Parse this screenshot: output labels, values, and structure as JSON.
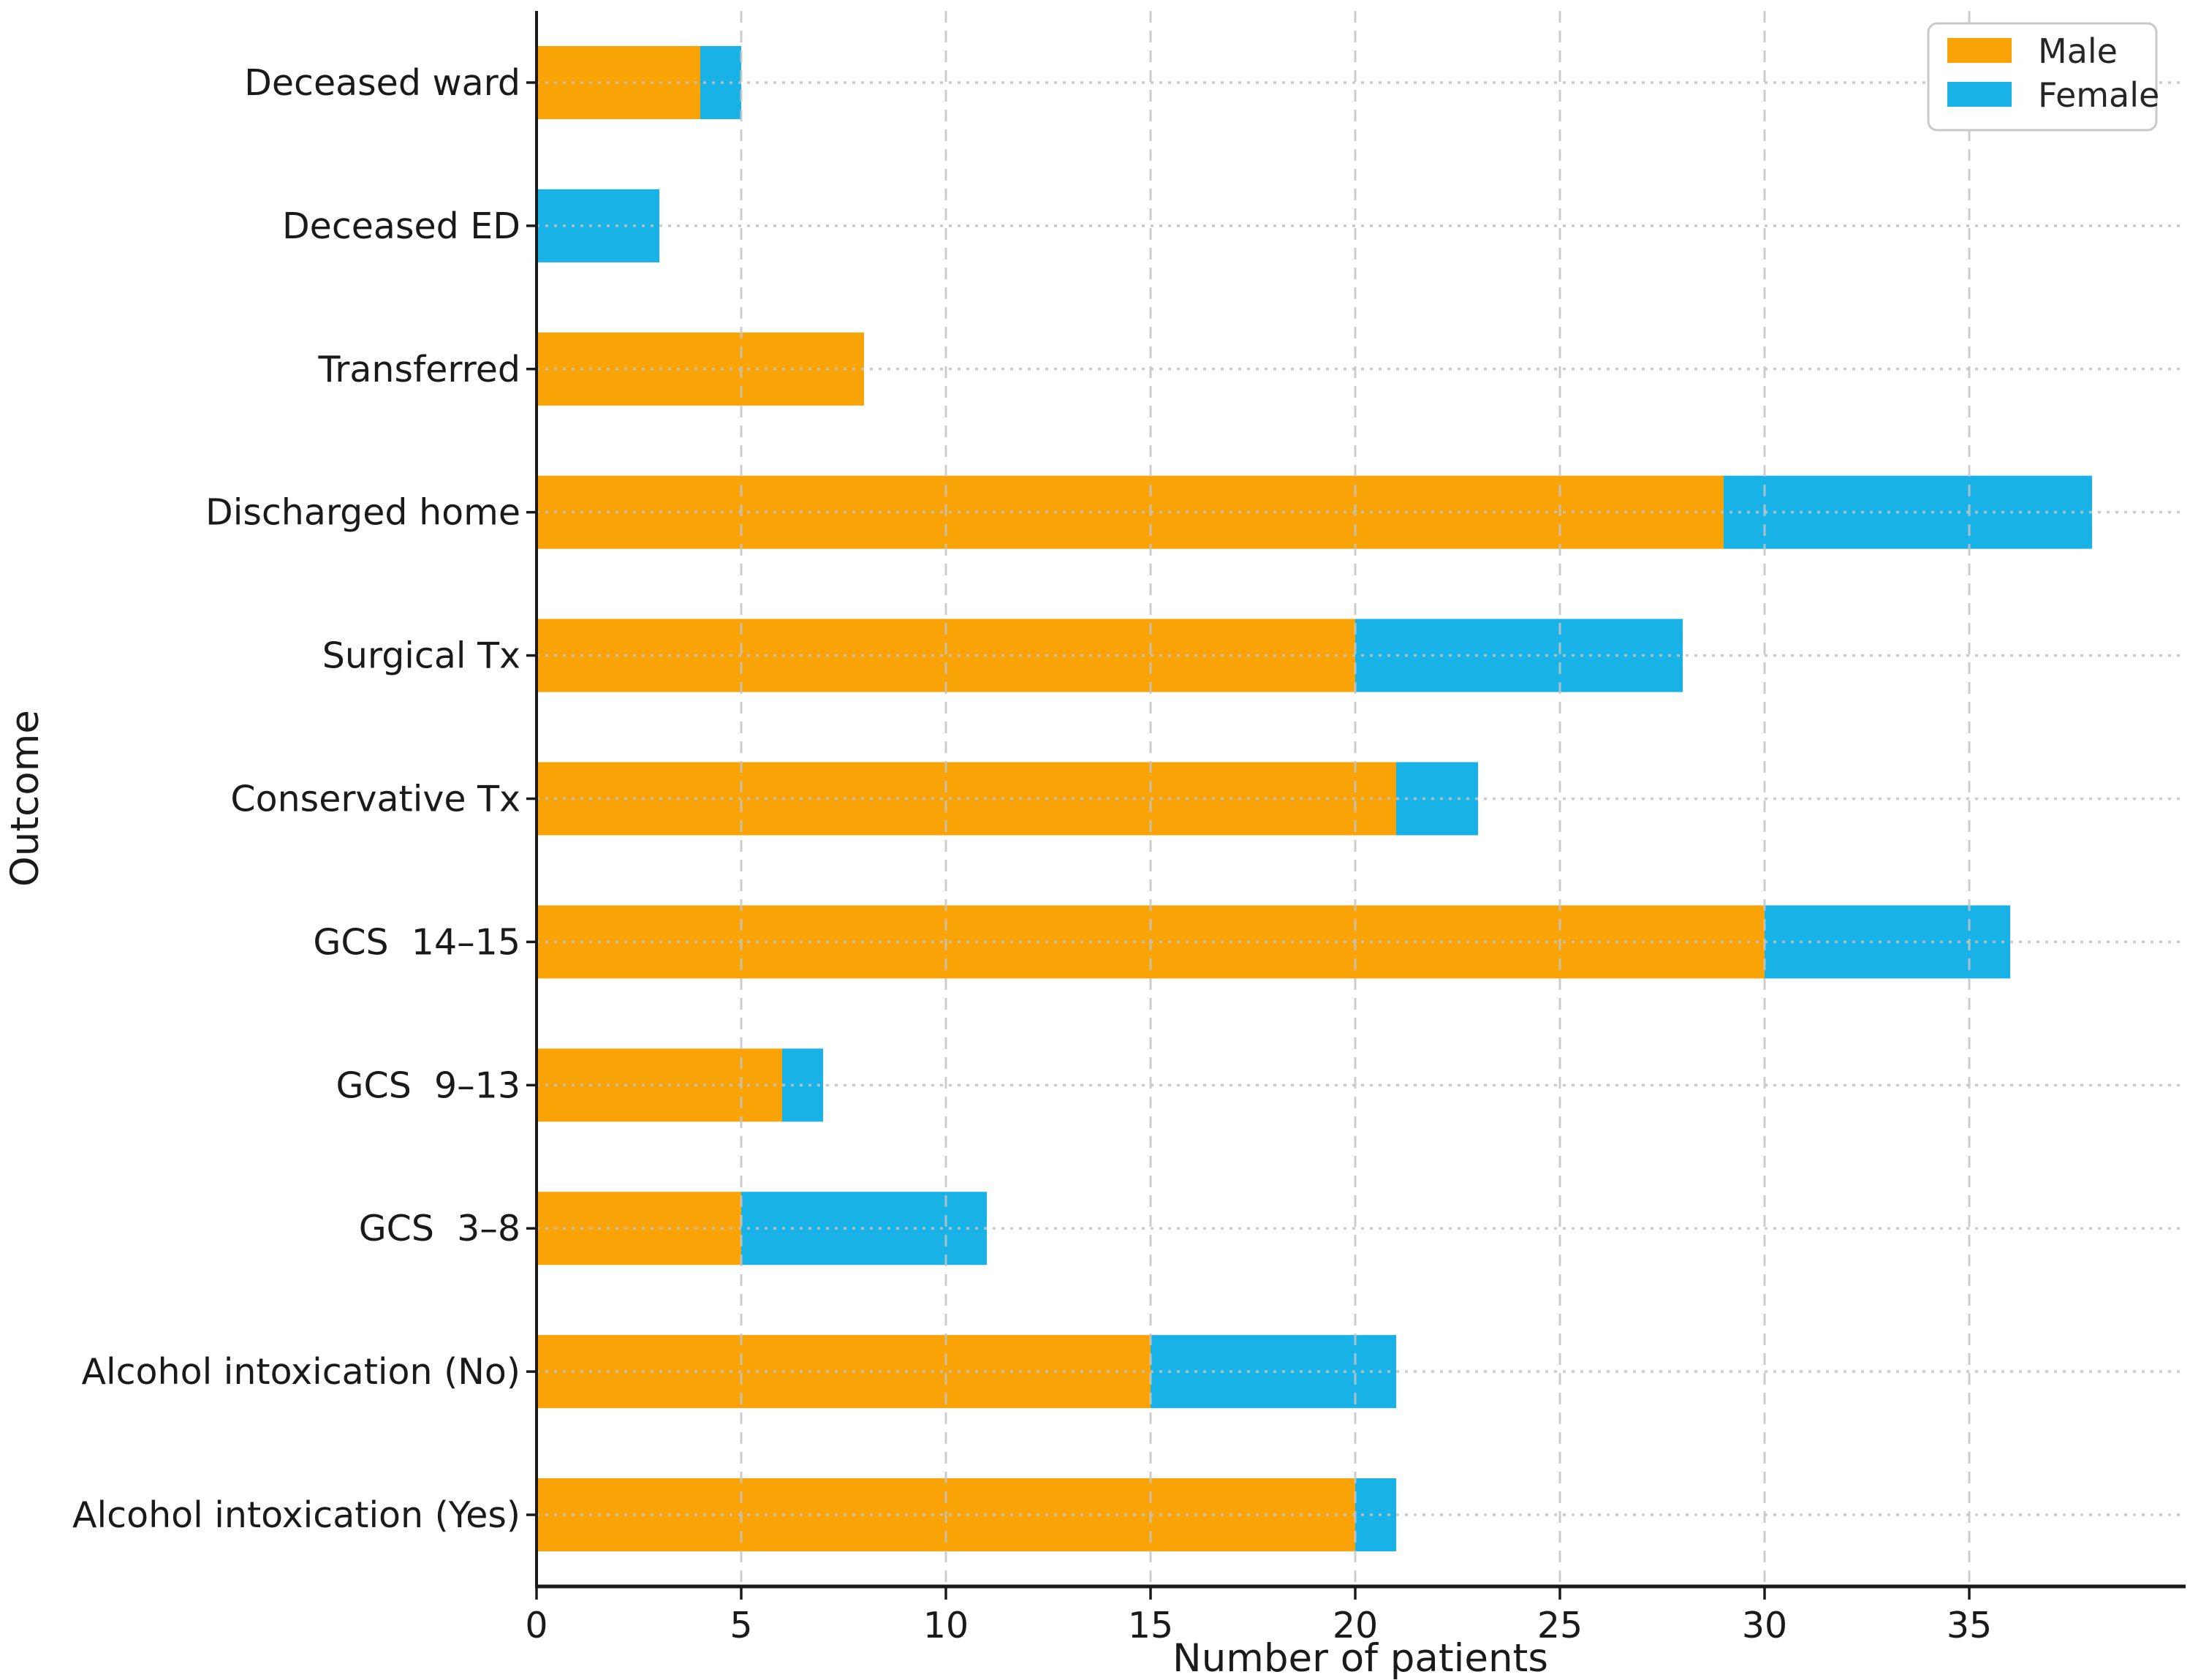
{
  "figure": {
    "background": "#ffffff"
  },
  "chart_data": {
    "type": "bar",
    "orientation": "horizontal",
    "stacked": true,
    "title": "",
    "xlabel": "Number of patients",
    "ylabel": "Outcome",
    "xlim": [
      0,
      40.2
    ],
    "xticks": [
      0,
      5,
      10,
      15,
      20,
      25,
      30,
      35
    ],
    "grid": true,
    "gridline_color": "#c4c4c4",
    "legend_position": "upper right",
    "categories_top_to_bottom": [
      "Deceased ward",
      "Deceased ED",
      "Transferred",
      "Discharged home",
      "Surgical Tx",
      "Conservative Tx",
      "GCS  14–15",
      "GCS  9–13",
      "GCS  3–8",
      "Alcohol intoxication (No)",
      "Alcohol intoxication (Yes)"
    ],
    "series": [
      {
        "name": "Male",
        "color": "#FAA306",
        "values": [
          4,
          0,
          8,
          29,
          20,
          21,
          30,
          6,
          5,
          15,
          20
        ]
      },
      {
        "name": "Female",
        "color": "#18B2E6",
        "values": [
          1,
          3,
          0,
          9,
          8,
          2,
          6,
          1,
          6,
          6,
          1
        ]
      }
    ],
    "totals_note": {
      "Deceased ward": 5,
      "Deceased ED": 3,
      "Transferred": 8,
      "Discharged home": 38,
      "Surgical Tx": 28,
      "Conservative Tx": 23,
      "GCS  14–15": 36,
      "GCS  9–13": 7,
      "GCS  3–8": 11,
      "Alcohol intoxication (No)": 21,
      "Alcohol intoxication (Yes)": 21
    },
    "axis_color": "#1a1a1a"
  },
  "legend": {
    "entries": [
      {
        "label": "Male",
        "swatch_color": "#FAA306"
      },
      {
        "label": "Female",
        "swatch_color": "#18B2E6"
      }
    ]
  }
}
